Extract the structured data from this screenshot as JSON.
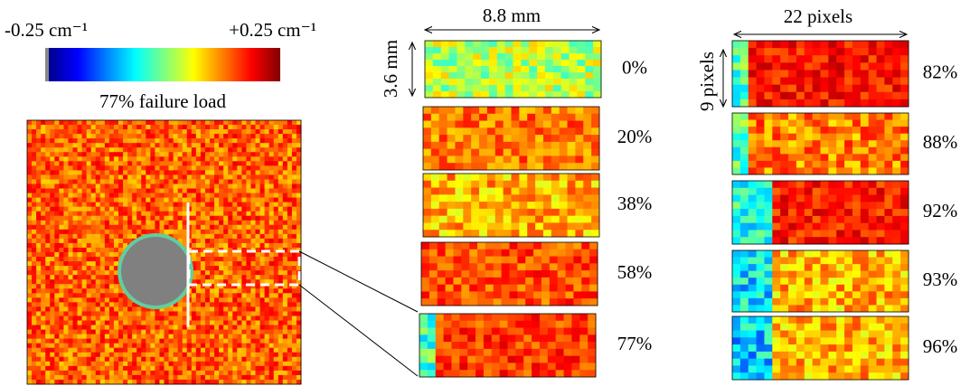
{
  "colorbar": {
    "min_label": "-0.25 cm⁻¹",
    "max_label": "+0.25 cm⁻¹",
    "caption": "77% failure load"
  },
  "left_column": {
    "width_label": "8.8 mm",
    "height_label": "3.6 mm",
    "panels": [
      "0%",
      "20%",
      "38%",
      "58%",
      "77%"
    ]
  },
  "right_column": {
    "width_label": "22 pixels",
    "height_label": "9 pixels",
    "panels": [
      "82%",
      "88%",
      "92%",
      "93%",
      "96%"
    ]
  }
}
